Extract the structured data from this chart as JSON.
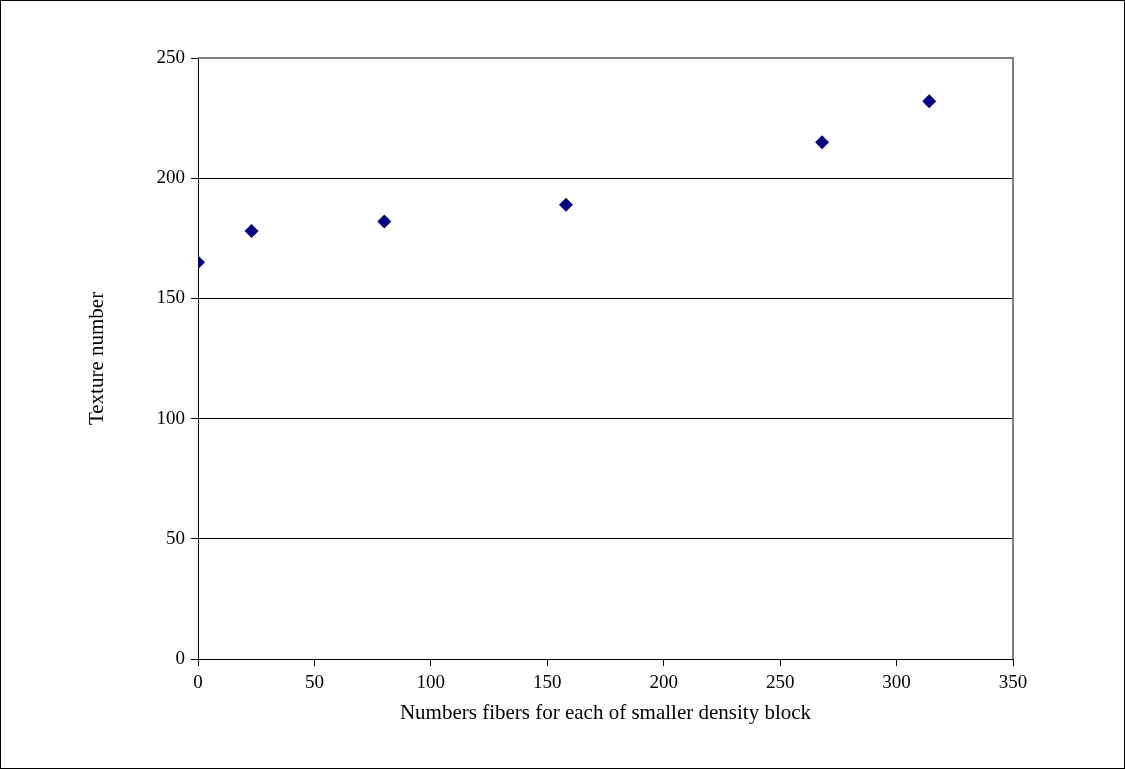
{
  "chart_data": {
    "type": "scatter",
    "xlabel": "Numbers fibers for each of smaller density block",
    "ylabel": "Texture number",
    "x": [
      0,
      23,
      80,
      158,
      268,
      314
    ],
    "series": [
      {
        "color": "#000080",
        "values": [
          165,
          178,
          182,
          189,
          215,
          232
        ]
      }
    ],
    "xlim": [
      0,
      350
    ],
    "xticks": [
      0,
      50,
      100,
      150,
      200,
      250,
      300,
      350
    ],
    "ylim": [
      0,
      250
    ],
    "yticks": [
      0,
      50,
      100,
      150,
      200,
      250
    ],
    "grid": "y",
    "legend": false,
    "marker": "diamond"
  }
}
